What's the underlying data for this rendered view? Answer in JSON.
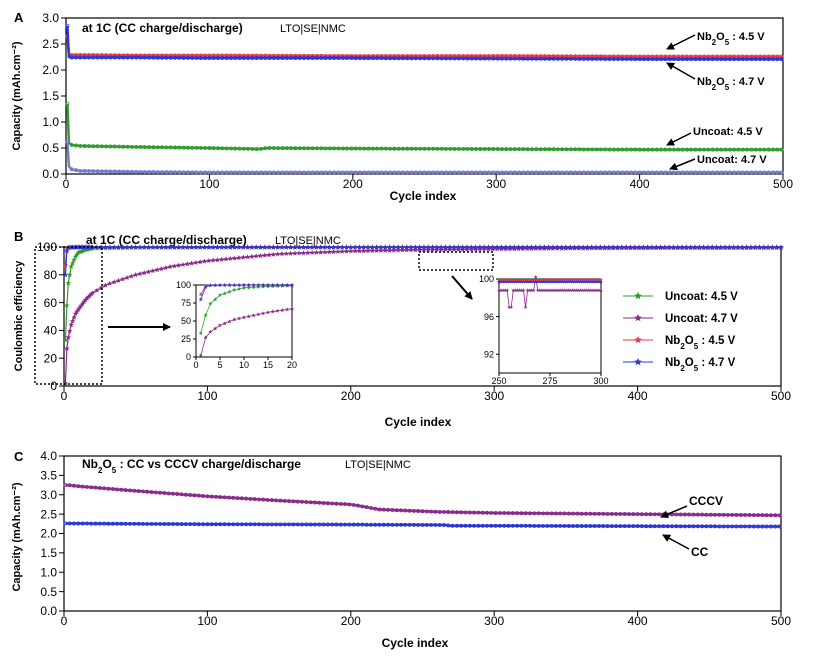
{
  "chart_data": [
    {
      "type": "line",
      "panel_label": "A",
      "title": "at 1C (CC charge/discharge)",
      "subtitle": "LTO|SE|NMC",
      "xlabel": "Cycle index",
      "ylabel": "Capacity (mAh.cm⁻²)",
      "xlim": [
        0,
        500
      ],
      "ylim": [
        0,
        3.0
      ],
      "xticks": [
        "0",
        "100",
        "200",
        "300",
        "400",
        "500"
      ],
      "yticks": [
        "0.0",
        "0.5",
        "1.0",
        "1.5",
        "2.0",
        "2.5",
        "3.0"
      ],
      "series": [
        {
          "name": "Nb₂O₅ : 4.5 V",
          "color": "#e83a4a",
          "x": [
            1,
            2,
            4,
            10,
            50,
            100,
            200,
            300,
            400,
            500
          ],
          "values": [
            2.65,
            2.3,
            2.29,
            2.29,
            2.28,
            2.28,
            2.27,
            2.27,
            2.26,
            2.26
          ]
        },
        {
          "name": "Nb₂O₅ : 4.7 V",
          "color": "#2a36d6",
          "x": [
            1,
            2,
            4,
            10,
            50,
            100,
            200,
            300,
            400,
            500
          ],
          "values": [
            2.85,
            2.25,
            2.24,
            2.24,
            2.24,
            2.23,
            2.23,
            2.22,
            2.21,
            2.21
          ]
        },
        {
          "name": "Uncoat: 4.5 V",
          "color": "#2e9c2e",
          "x": [
            1,
            2,
            4,
            10,
            50,
            100,
            135,
            140,
            200,
            300,
            400,
            500
          ],
          "values": [
            1.35,
            0.6,
            0.56,
            0.54,
            0.52,
            0.5,
            0.48,
            0.5,
            0.49,
            0.48,
            0.47,
            0.47
          ]
        },
        {
          "name": "Uncoat: 4.7 V",
          "color": "#7a7acc",
          "x": [
            1,
            2,
            4,
            10,
            50,
            100,
            200,
            300,
            400,
            500
          ],
          "values": [
            0.62,
            0.15,
            0.09,
            0.06,
            0.04,
            0.03,
            0.03,
            0.03,
            0.03,
            0.03
          ]
        }
      ],
      "annotations": [
        {
          "label_parts": [
            "Nb",
            "2",
            "O",
            "5",
            " : 4.5 V"
          ]
        },
        {
          "label_parts": [
            "Nb",
            "2",
            "O",
            "5",
            " : 4.7 V"
          ]
        },
        {
          "label_parts": [
            "Uncoat: 4.5 V"
          ]
        },
        {
          "label_parts": [
            "Uncoat: 4.7 V"
          ]
        }
      ]
    },
    {
      "type": "scatter",
      "panel_label": "B",
      "title": "at 1C (CC charge/discharge)",
      "subtitle": "LTO|SE|NMC",
      "xlabel": "Cycle index",
      "ylabel": "Coulombic efficiency",
      "xlim": [
        0,
        500
      ],
      "ylim": [
        0,
        100
      ],
      "xticks": [
        "0",
        "100",
        "200",
        "300",
        "400",
        "500"
      ],
      "yticks": [
        "0",
        "20",
        "40",
        "60",
        "80",
        "100"
      ],
      "legend_position": "right",
      "legend": [
        {
          "label_parts": [
            "Uncoat: 4.5 V"
          ],
          "color": "#2e9c2e"
        },
        {
          "label_parts": [
            "Uncoat: 4.7 V"
          ],
          "color": "#8a2a8a"
        },
        {
          "label_parts": [
            "Nb",
            "2",
            "O",
            "5",
            " : 4.5 V"
          ],
          "color": "#e83a4a"
        },
        {
          "label_parts": [
            "Nb",
            "2",
            "O",
            "5",
            " : 4.7 V"
          ],
          "color": "#2a36d6"
        }
      ],
      "series": [
        {
          "name": "Uncoat: 4.5 V",
          "color": "#2e9c2e",
          "x": [
            1,
            2,
            3,
            5,
            8,
            10,
            15,
            20,
            50,
            100,
            200,
            300,
            400,
            500
          ],
          "values": [
            33,
            58,
            74,
            86,
            93,
            96,
            98,
            99,
            99.5,
            99.6,
            99.7,
            99.7,
            99.7,
            99.7
          ]
        },
        {
          "name": "Uncoat: 4.7 V",
          "color": "#8a2a8a",
          "x": [
            1,
            2,
            3,
            5,
            8,
            10,
            15,
            20,
            30,
            50,
            75,
            100,
            150,
            200,
            250,
            300,
            350,
            400,
            500
          ],
          "values": [
            2,
            27,
            35,
            44,
            52,
            55,
            62,
            67,
            73,
            80,
            86,
            90,
            95,
            97,
            98,
            98.5,
            99,
            99.2,
            99.4
          ]
        },
        {
          "name": "Nb₂O₅ : 4.5 V",
          "color": "#e83a4a",
          "x": [
            1,
            2,
            3,
            5,
            10,
            50,
            100,
            200,
            300,
            400,
            500
          ],
          "values": [
            87,
            99,
            99.6,
            99.8,
            99.9,
            99.9,
            99.9,
            99.9,
            99.9,
            99.9,
            99.9
          ]
        },
        {
          "name": "Nb₂O₅ : 4.7 V",
          "color": "#2a36d6",
          "x": [
            1,
            2,
            3,
            5,
            10,
            50,
            100,
            200,
            300,
            400,
            500
          ],
          "values": [
            80,
            97,
            99.5,
            99.7,
            99.8,
            99.8,
            99.8,
            99.8,
            99.8,
            99.8,
            99.8
          ]
        }
      ],
      "insets": [
        {
          "xlim": [
            0,
            20
          ],
          "ylim": [
            0,
            100
          ],
          "xticks": [
            "0",
            "5",
            "10",
            "15",
            "20"
          ],
          "yticks": [
            "0",
            "25",
            "50",
            "75",
            "100"
          ]
        },
        {
          "xlim": [
            250,
            300
          ],
          "ylim": [
            90,
            100
          ],
          "xticks": [
            "250",
            "275",
            "300"
          ],
          "yticks": [
            "92",
            "96",
            "100"
          ]
        }
      ]
    },
    {
      "type": "line",
      "panel_label": "C",
      "title_parts": [
        "Nb",
        "2",
        "O",
        "5",
        " : CC vs CCCV charge/discharge"
      ],
      "subtitle": "LTO|SE|NMC",
      "xlabel": "Cycle index",
      "ylabel": "Capacity (mAh.cm⁻²)",
      "xlim": [
        0,
        500
      ],
      "ylim": [
        0,
        4.0
      ],
      "xticks": [
        "0",
        "100",
        "200",
        "300",
        "400",
        "500"
      ],
      "yticks": [
        "0.0",
        "0.5",
        "1.0",
        "1.5",
        "2.0",
        "2.5",
        "3.0",
        "3.5",
        "4.0"
      ],
      "series": [
        {
          "name": "CCCV",
          "color": "#8a2a8a",
          "x": [
            1,
            3,
            10,
            50,
            100,
            150,
            200,
            205,
            220,
            260,
            300,
            400,
            500
          ],
          "values": [
            3.25,
            3.25,
            3.22,
            3.1,
            2.96,
            2.85,
            2.75,
            2.72,
            2.62,
            2.56,
            2.53,
            2.5,
            2.47
          ]
        },
        {
          "name": "CC",
          "color": "#2a36d6",
          "x": [
            1,
            3,
            50,
            100,
            200,
            265,
            270,
            300,
            400,
            500
          ],
          "values": [
            2.26,
            2.26,
            2.25,
            2.24,
            2.23,
            2.22,
            2.2,
            2.2,
            2.19,
            2.18
          ]
        }
      ],
      "annotations": [
        {
          "label_parts": [
            "CCCV"
          ]
        },
        {
          "label_parts": [
            "CC"
          ]
        }
      ]
    }
  ]
}
